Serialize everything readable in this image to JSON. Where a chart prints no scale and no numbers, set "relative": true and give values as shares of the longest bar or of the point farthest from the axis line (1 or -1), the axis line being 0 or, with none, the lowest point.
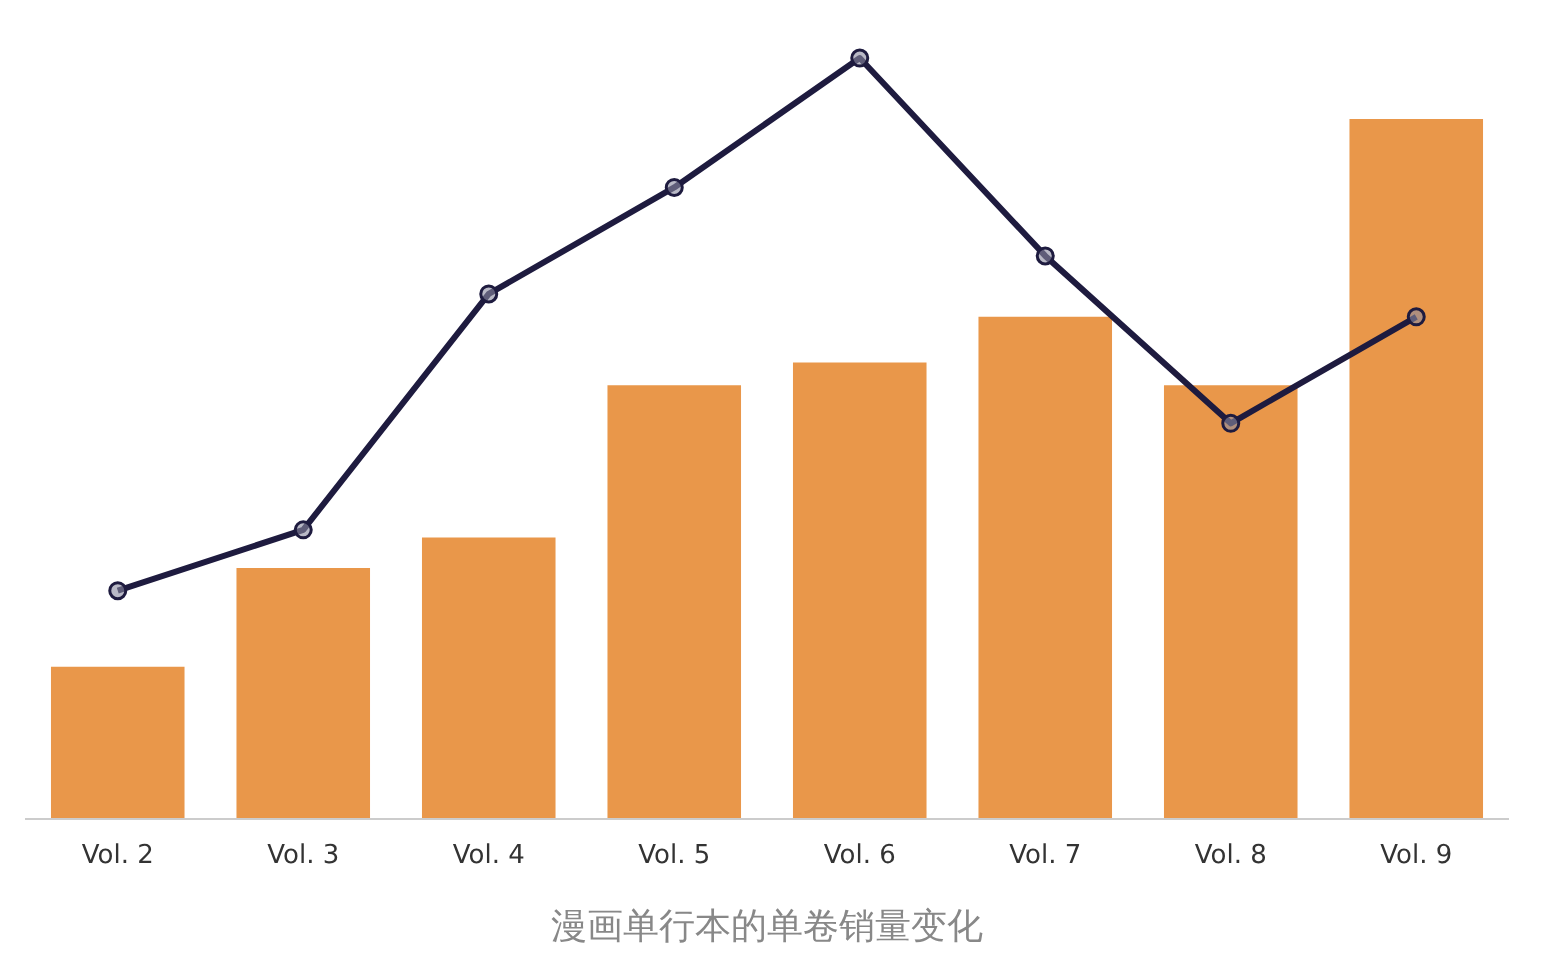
{
  "chart_data": {
    "type": "bar",
    "relative": true,
    "categories": [
      "Vol. 2",
      "Vol. 3",
      "Vol. 4",
      "Vol. 5",
      "Vol. 6",
      "Vol. 7",
      "Vol. 8",
      "Vol. 9"
    ],
    "series": [
      {
        "color": "#e9974a",
        "values": [
          0.2,
          0.33,
          0.37,
          0.57,
          0.6,
          0.66,
          0.57,
          0.92
        ]
      },
      {
        "type": "line",
        "color": "#1e1b3f",
        "marker": "circle",
        "values": [
          0.3,
          0.38,
          0.69,
          0.83,
          1.0,
          0.74,
          0.52,
          0.66
        ]
      }
    ],
    "grid": false,
    "annotations": [
      "漫画单行本的单卷销量变化"
    ]
  }
}
